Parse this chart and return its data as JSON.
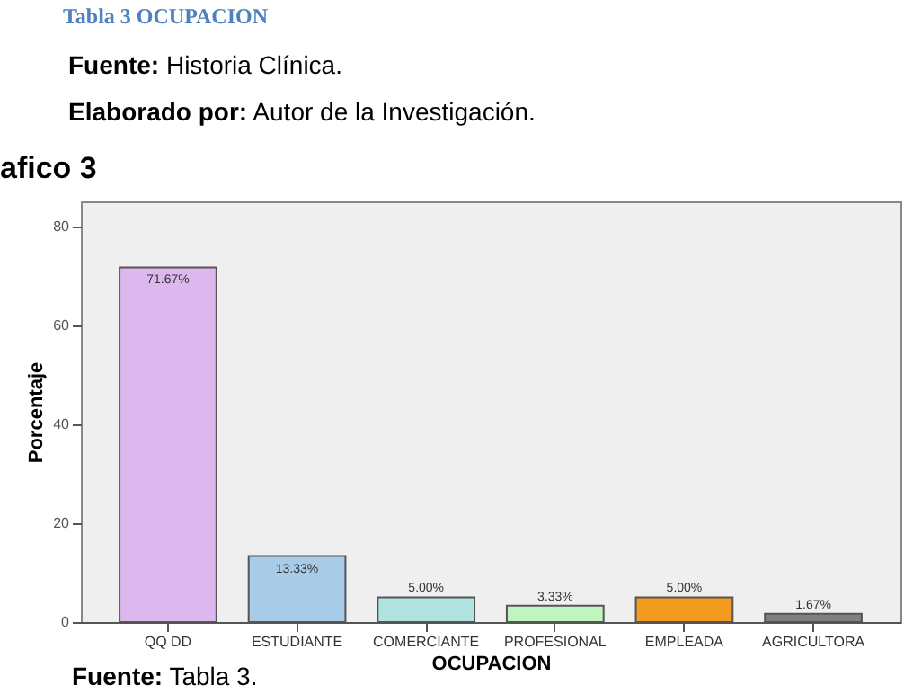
{
  "chart_data": {
    "type": "bar",
    "title": "Tabla 3 OCUPACION",
    "subtitle": "afico 3",
    "annotations": [
      "Fuente: Historia Clínica.",
      "Elaborado por: Autor de la Investigación.",
      "Fuente: Tabla 3."
    ],
    "xlabel": "OCUPACION",
    "ylabel": "Porcentaje",
    "categories": [
      "QQ DD",
      "ESTUDIANTE",
      "COMERCIANTE",
      "PROFESIONAL",
      "EMPLEADA",
      "AGRICULTORA"
    ],
    "values": [
      71.67,
      13.33,
      5.0,
      3.33,
      5.0,
      1.67
    ],
    "colors": [
      "#dcb8ee",
      "#a8cbe8",
      "#b0e4e0",
      "#c0f5c0",
      "#f39a1f",
      "#808080"
    ],
    "value_labels": [
      "71.67%",
      "13.33%",
      "5.00%",
      "3.33%",
      "5.00%",
      "1.67%"
    ],
    "ylim": [
      0,
      85
    ],
    "yticks": [
      0,
      20,
      40,
      60,
      80
    ],
    "grid": false
  }
}
